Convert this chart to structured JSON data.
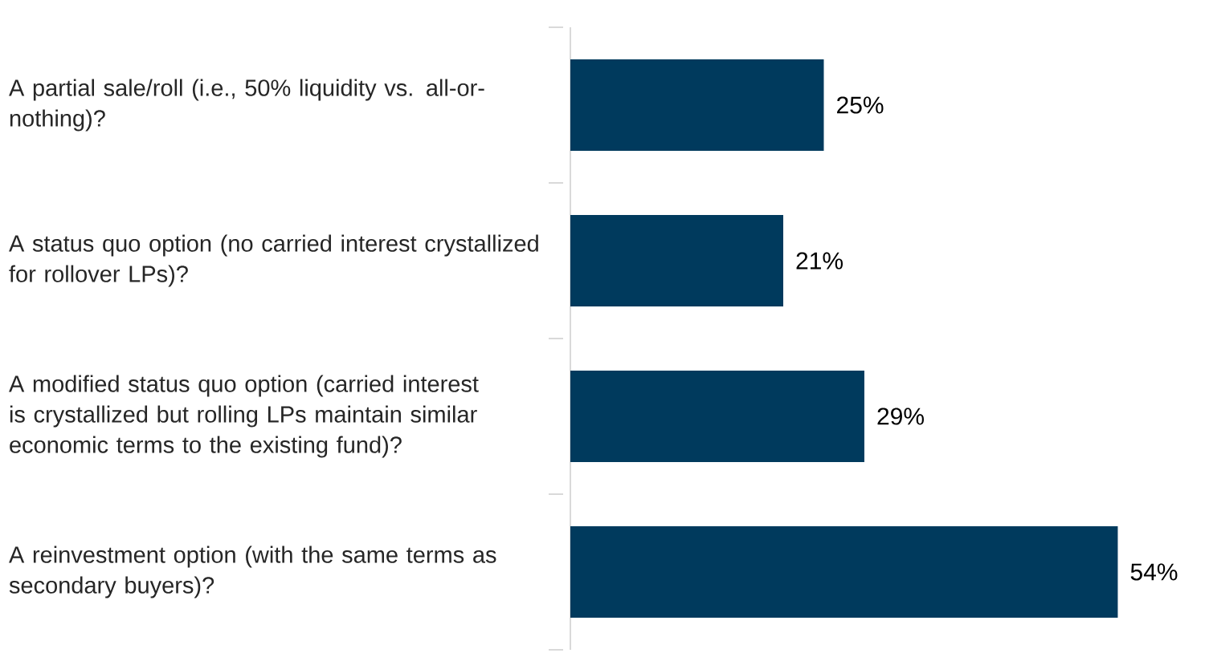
{
  "chart_data": {
    "type": "bar",
    "orientation": "horizontal",
    "categories": [
      "A partial sale/roll (i.e., 50% liquidity vs. all-or-nothing)?",
      "A status quo option (no carried interest crystallized for rollover LPs)?",
      "A modified status quo option (carried interest is crystallized but rolling LPs maintain similar economic terms to the existing fund)?",
      "A reinvestment option (with the same terms as secondary buyers)?"
    ],
    "values": [
      25,
      21,
      29,
      54
    ],
    "value_labels": [
      "25%",
      "21%",
      "29%",
      "54%"
    ],
    "color": "#003a5d"
  }
}
